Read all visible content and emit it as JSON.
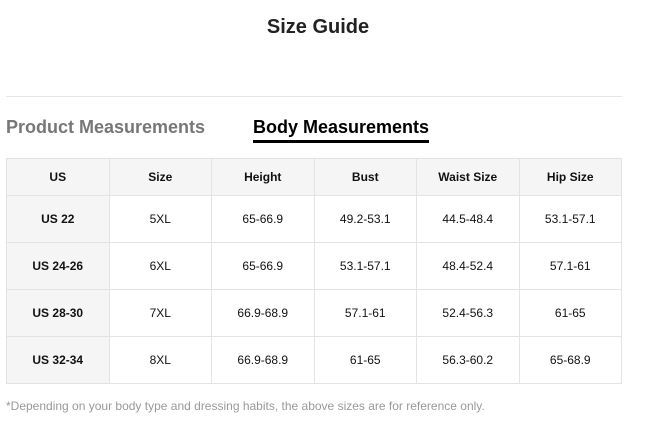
{
  "title": "Size Guide",
  "tabs": [
    {
      "label": "Product Measurements",
      "active": false
    },
    {
      "label": "Body Measurements",
      "active": true
    }
  ],
  "table": {
    "headers": [
      "US",
      "Size",
      "Height",
      "Bust",
      "Waist Size",
      "Hip Size"
    ],
    "rows": [
      [
        "US 22",
        "5XL",
        "65-66.9",
        "49.2-53.1",
        "44.5-48.4",
        "53.1-57.1"
      ],
      [
        "US 24-26",
        "6XL",
        "65-66.9",
        "53.1-57.1",
        "48.4-52.4",
        "57.1-61"
      ],
      [
        "US 28-30",
        "7XL",
        "66.9-68.9",
        "57.1-61",
        "52.4-56.3",
        "61-65"
      ],
      [
        "US 32-34",
        "8XL",
        "66.9-68.9",
        "61-65",
        "56.3-60.2",
        "65-68.9"
      ]
    ]
  },
  "footnote": "*Depending on your body type and dressing habits, the above sizes are for reference only."
}
